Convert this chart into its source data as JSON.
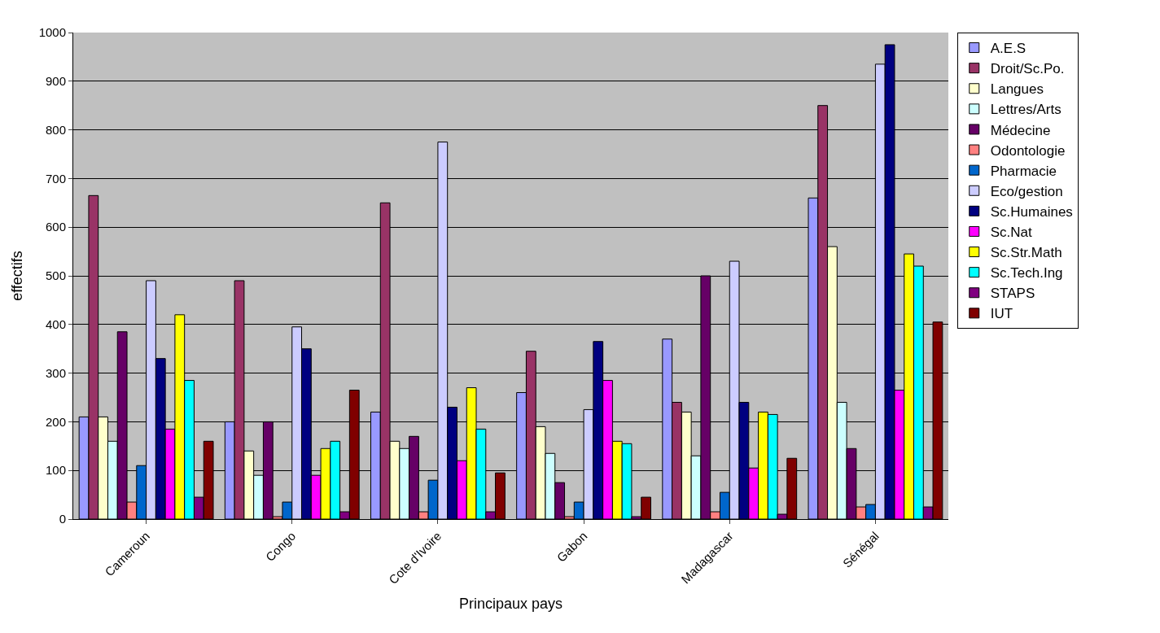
{
  "chart_data": {
    "type": "bar",
    "xlabel": "Principaux pays",
    "ylabel": "effectifs",
    "categories": [
      "Cameroun",
      "Congo",
      "Cote d'Ivoire",
      "Gabon",
      "Madagascar",
      "Sénégal"
    ],
    "ylim": [
      0,
      1000
    ],
    "yticks": [
      0,
      100,
      200,
      300,
      400,
      500,
      600,
      700,
      800,
      900,
      1000
    ],
    "grid": "y",
    "legend": "right",
    "series": [
      {
        "name": "A.E.S",
        "color": "#9999ff",
        "values": [
          210,
          200,
          220,
          260,
          370,
          660
        ]
      },
      {
        "name": "Droit/Sc.Po.",
        "color": "#993366",
        "values": [
          665,
          490,
          650,
          345,
          240,
          850
        ]
      },
      {
        "name": "Langues",
        "color": "#ffffcc",
        "values": [
          210,
          140,
          160,
          190,
          220,
          560
        ]
      },
      {
        "name": "Lettres/Arts",
        "color": "#ccffff",
        "values": [
          160,
          90,
          145,
          135,
          130,
          240
        ]
      },
      {
        "name": "Médecine",
        "color": "#660066",
        "values": [
          385,
          200,
          170,
          75,
          500,
          145
        ]
      },
      {
        "name": "Odontologie",
        "color": "#ff8080",
        "values": [
          35,
          5,
          15,
          5,
          15,
          25
        ]
      },
      {
        "name": "Pharmacie",
        "color": "#0066cc",
        "values": [
          110,
          35,
          80,
          35,
          55,
          30
        ]
      },
      {
        "name": "Eco/gestion",
        "color": "#ccccff",
        "values": [
          490,
          395,
          775,
          225,
          530,
          935
        ]
      },
      {
        "name": "Sc.Humaines",
        "color": "#000080",
        "values": [
          330,
          350,
          230,
          365,
          240,
          975
        ]
      },
      {
        "name": "Sc.Nat",
        "color": "#ff00ff",
        "values": [
          185,
          90,
          120,
          285,
          105,
          265
        ]
      },
      {
        "name": "Sc.Str.Math",
        "color": "#ffff00",
        "values": [
          420,
          145,
          270,
          160,
          220,
          545
        ]
      },
      {
        "name": "Sc.Tech.Ing",
        "color": "#00ffff",
        "values": [
          285,
          160,
          185,
          155,
          215,
          520
        ]
      },
      {
        "name": "STAPS",
        "color": "#800080",
        "values": [
          45,
          15,
          15,
          5,
          10,
          25
        ]
      },
      {
        "name": "IUT",
        "color": "#800000",
        "values": [
          160,
          265,
          95,
          45,
          125,
          405
        ]
      }
    ]
  }
}
